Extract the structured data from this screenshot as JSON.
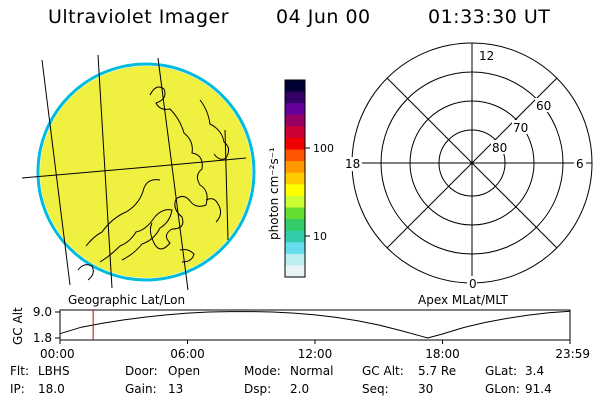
{
  "header": {
    "instrument": "Ultraviolet Imager",
    "date": "04 Jun 00",
    "time": "01:33:30 UT"
  },
  "panels": {
    "left_caption": "Geographic Lat/Lon",
    "right_caption": "Apex MLat/MLT"
  },
  "colorbar": {
    "label": "photon cm⁻²s⁻¹",
    "ticks": [
      "100",
      "10"
    ],
    "colors": [
      "#000033",
      "#330066",
      "#660099",
      "#990066",
      "#cc0033",
      "#ee0000",
      "#ff5500",
      "#ff9900",
      "#ffcc00",
      "#ffff00",
      "#ccff33",
      "#66dd33",
      "#33cc66",
      "#33ccaa",
      "#66ddee",
      "#bbeeee",
      "#e8f4f4"
    ]
  },
  "polar": {
    "mlt_labels": [
      "12",
      "18",
      "6",
      "0"
    ],
    "lat_labels": [
      "60",
      "70",
      "80"
    ]
  },
  "icon": {
    "name": "earth-map-icon",
    "ring_color": "#00bbdd",
    "image_fill": "#f0f040"
  },
  "chart_data": {
    "type": "line",
    "title": "",
    "xlabel": "",
    "ylabel": "GC Alt",
    "yticks": [
      "9.0",
      "1.8"
    ],
    "xticks": [
      "00:00",
      "06:00",
      "12:00",
      "18:00",
      "23:59"
    ],
    "ylim": [
      1.8,
      9.0
    ],
    "xlim_hours": [
      0,
      24
    ],
    "current_time_hours": 1.56,
    "current_time_color": "#cc0000",
    "series": [
      {
        "x": [
          0,
          1,
          2,
          3,
          4,
          5,
          6,
          7,
          8,
          9,
          10,
          11,
          12,
          13,
          14,
          15,
          16,
          17,
          17.3,
          18,
          19,
          20,
          21,
          22,
          23,
          24
        ],
        "y": [
          3.0,
          4.8,
          5.9,
          6.8,
          7.6,
          8.2,
          8.7,
          9.0,
          9.1,
          9.1,
          9.0,
          8.7,
          8.2,
          7.5,
          6.6,
          5.4,
          3.9,
          2.3,
          1.8,
          2.9,
          4.7,
          6.1,
          7.2,
          8.1,
          8.8,
          9.2
        ]
      }
    ]
  },
  "footer": [
    {
      "key": "Flt:",
      "value": "LBHS"
    },
    {
      "key": "Door:",
      "value": "Open"
    },
    {
      "key": "Mode:",
      "value": "Normal"
    },
    {
      "key": "GC Alt:",
      "value": "5.7 Re"
    },
    {
      "key": "GLat:",
      "value": "3.4"
    },
    {
      "key": "IP:",
      "value": "18.0"
    },
    {
      "key": "Gain:",
      "value": "13"
    },
    {
      "key": "Dsp:",
      "value": "2.0"
    },
    {
      "key": "Seq:",
      "value": "30"
    },
    {
      "key": "GLon:",
      "value": "91.4"
    }
  ]
}
